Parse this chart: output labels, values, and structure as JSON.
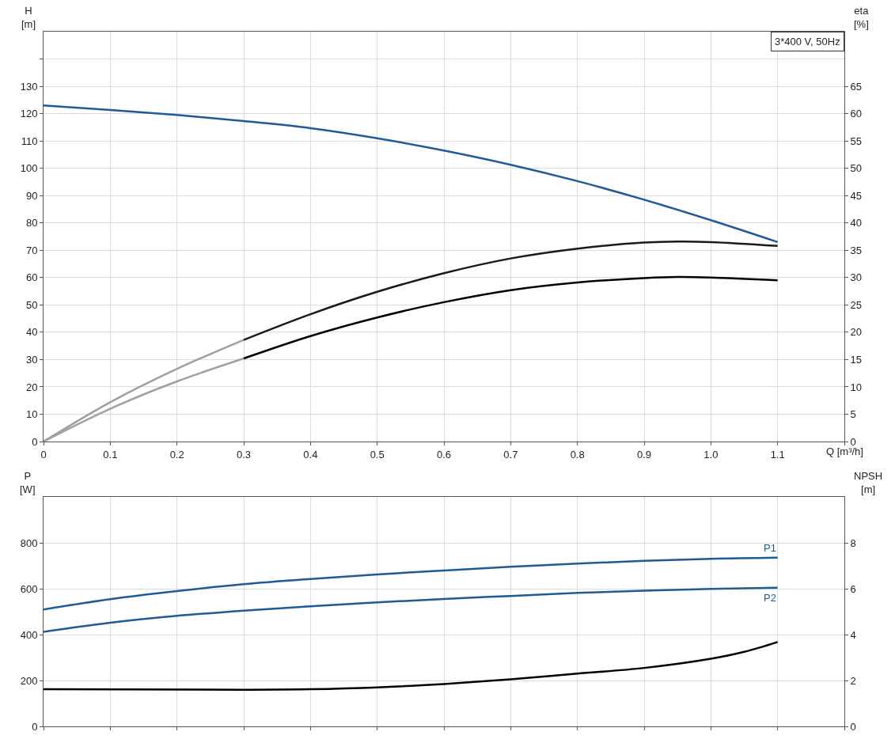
{
  "chart_data": [
    {
      "type": "line",
      "title": "3*400 V, 50Hz",
      "xlabel": "Q [m³/h]",
      "ylabel": "H\n[m]",
      "y2label": "eta\n[%]",
      "xlim": [
        0,
        1.2
      ],
      "xticks": [
        0,
        0.1,
        0.2,
        0.3,
        0.4,
        0.5,
        0.6,
        0.7,
        0.8,
        0.9,
        {
          "value": 1,
          "label": "1.0"
        },
        1.1,
        {
          "value": 1.2,
          "label": null
        }
      ],
      "ylim": [
        0,
        150
      ],
      "yticks": [
        0,
        10,
        20,
        30,
        40,
        50,
        60,
        70,
        80,
        90,
        100,
        110,
        120,
        130,
        {
          "value": 140,
          "label": null
        }
      ],
      "y2lim": [
        0,
        75
      ],
      "y2ticks": [
        0,
        5,
        10,
        15,
        20,
        25,
        30,
        35,
        40,
        45,
        50,
        55,
        60,
        65
      ],
      "grid": true,
      "legend": false,
      "marker": "none",
      "line_style": "solid",
      "series": [
        {
          "color": "#1f5b96",
          "x": [
            0,
            0.1,
            0.2,
            0.3,
            0.4,
            0.5,
            0.6,
            0.7,
            0.8,
            0.9,
            1,
            1.1
          ],
          "values": [
            123,
            121.3,
            119.5,
            117.3,
            114.7,
            111,
            106.5,
            101.3,
            95.3,
            88.5,
            81,
            73
          ]
        },
        {
          "color": "#a0a0a0",
          "axis": "y2",
          "x": [
            0,
            0.1,
            0.2,
            0.3
          ],
          "values": [
            0,
            7.2,
            13.3,
            18.6
          ]
        },
        {
          "color": "#1a1a1a",
          "axis": "y2",
          "x": [
            0.3,
            0.4,
            0.5,
            0.6,
            0.7,
            0.8,
            0.9,
            0.95,
            1,
            1.1
          ],
          "values": [
            18.6,
            23.3,
            27.4,
            30.8,
            33.5,
            35.3,
            36.4,
            36.6,
            36.5,
            35.8
          ]
        },
        {
          "color": "#a0a0a0",
          "axis": "y2",
          "x": [
            0,
            0.1,
            0.2,
            0.3
          ],
          "values": [
            0,
            6,
            11,
            15.2
          ]
        },
        {
          "color": "#000000",
          "axis": "y2",
          "x": [
            0.3,
            0.4,
            0.5,
            0.6,
            0.7,
            0.8,
            0.9,
            0.95,
            1,
            1.1
          ],
          "values": [
            15.2,
            19.3,
            22.7,
            25.5,
            27.7,
            29.1,
            29.9,
            30.1,
            30,
            29.5
          ]
        }
      ]
    },
    {
      "type": "line",
      "ylabel": "P\n[W]",
      "y2label": "NPSH\n[m]",
      "xlim": [
        0,
        1.2
      ],
      "xticks": [
        {
          "value": 0,
          "label": null
        },
        {
          "value": 0.1,
          "label": null
        },
        {
          "value": 0.2,
          "label": null
        },
        {
          "value": 0.3,
          "label": null
        },
        {
          "value": 0.4,
          "label": null
        },
        {
          "value": 0.5,
          "label": null
        },
        {
          "value": 0.6,
          "label": null
        },
        {
          "value": 0.7,
          "label": null
        },
        {
          "value": 0.8,
          "label": null
        },
        {
          "value": 0.9,
          "label": null
        },
        {
          "value": 1,
          "label": null
        },
        {
          "value": 1.1,
          "label": null
        },
        {
          "value": 1.2,
          "label": null
        }
      ],
      "ylim": [
        0,
        1000
      ],
      "yticks": [
        0,
        200,
        400,
        600,
        800
      ],
      "y2lim": [
        0,
        10
      ],
      "y2ticks": [
        0,
        2,
        4,
        6,
        8
      ],
      "tick_labels": "y",
      "grid": true,
      "legend": false,
      "marker": "none",
      "line_style": "solid",
      "series": [
        {
          "name": "P1",
          "color": "#1f5b96",
          "x": [
            0,
            0.1,
            0.2,
            0.3,
            0.4,
            0.5,
            0.6,
            0.7,
            0.8,
            0.9,
            1,
            1.1
          ],
          "values": [
            510,
            555,
            590,
            620,
            643,
            663,
            680,
            696,
            710,
            722,
            731,
            736
          ]
        },
        {
          "name": "P2",
          "color": "#1f5b96",
          "x": [
            0,
            0.1,
            0.2,
            0.3,
            0.4,
            0.5,
            0.6,
            0.7,
            0.8,
            0.9,
            1,
            1.1
          ],
          "values": [
            412,
            452,
            482,
            505,
            524,
            541,
            556,
            569,
            582,
            592,
            600,
            605
          ]
        },
        {
          "color": "#000000",
          "axis": "y2",
          "x": [
            0,
            0.3,
            0.4,
            0.5,
            0.6,
            0.7,
            0.8,
            0.9,
            1,
            1.05,
            1.1
          ],
          "values": [
            1.62,
            1.6,
            1.62,
            1.7,
            1.85,
            2.05,
            2.3,
            2.55,
            2.95,
            3.25,
            3.68
          ]
        }
      ]
    }
  ]
}
